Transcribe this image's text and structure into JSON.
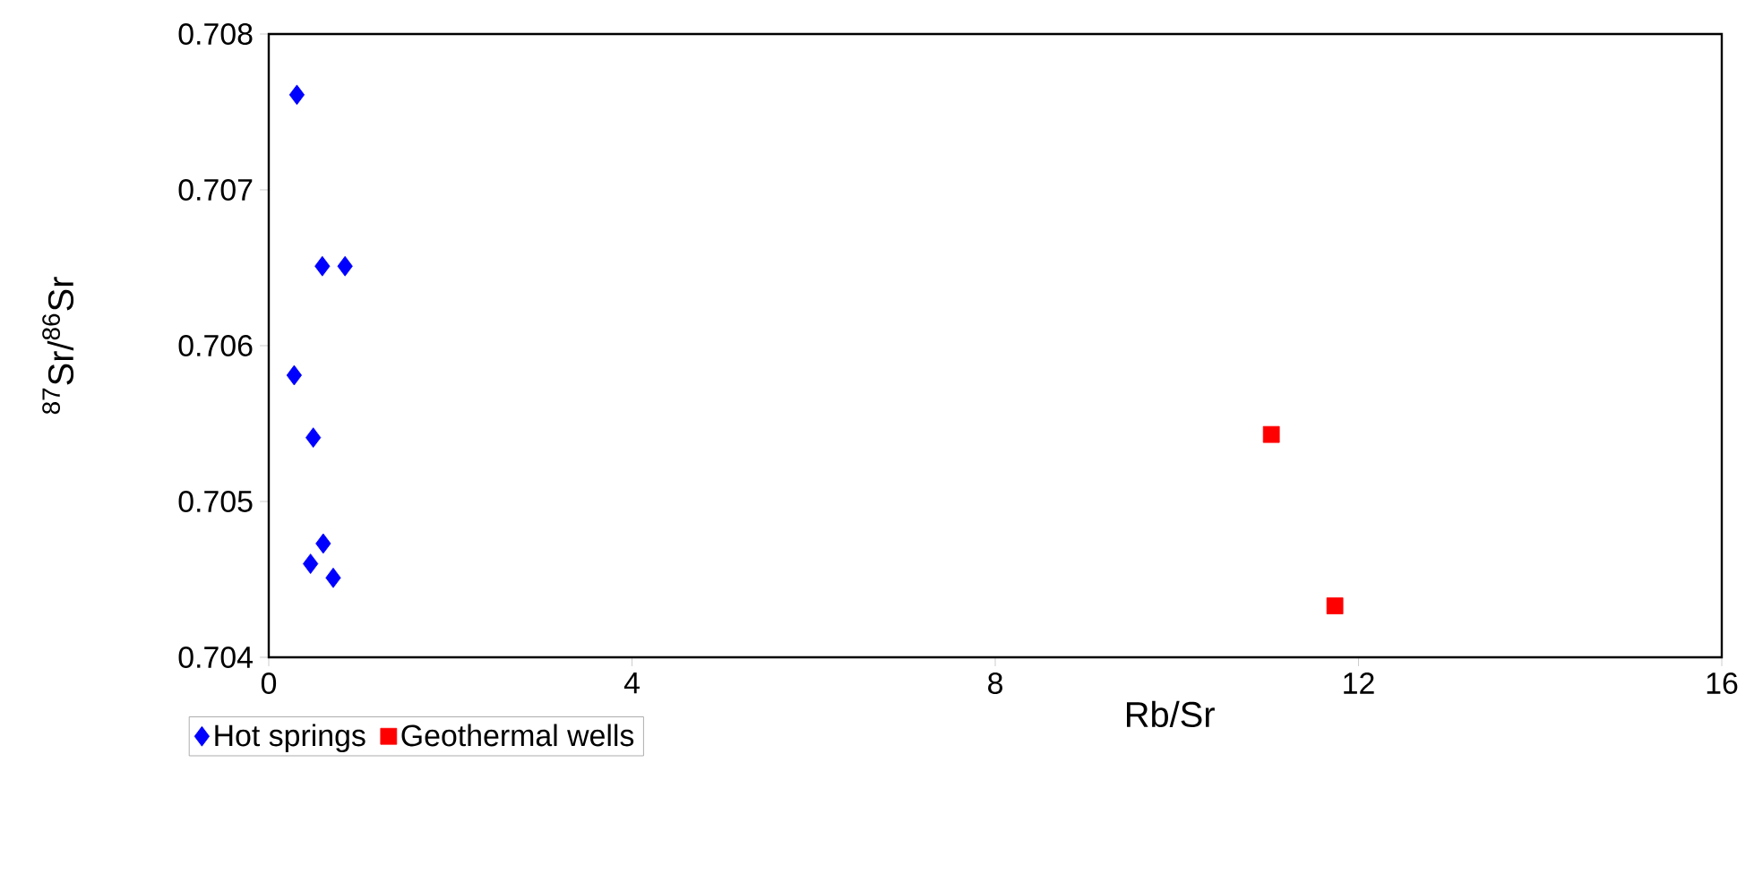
{
  "chart_data": {
    "type": "scatter",
    "xlabel": "Rb/Sr",
    "ylabel": "$^{87}$Sr/$^{86}$Sr",
    "xlim": [
      0,
      16
    ],
    "xticks": [
      0,
      4,
      8,
      12,
      16
    ],
    "ylim": [
      0.704,
      0.708
    ],
    "yticks": [
      0.704,
      0.705,
      0.706,
      0.707,
      0.708
    ],
    "grid": false,
    "legend": "bottom",
    "series": [
      {
        "name": "Hot  springs",
        "color": "#0000ff",
        "marker": "diamond",
        "x": [
          0.31,
          0.59,
          0.84,
          0.28,
          0.49,
          0.6,
          0.46,
          0.71
        ],
        "values": [
          0.70761,
          0.70651,
          0.70651,
          0.70581,
          0.70541,
          0.70473,
          0.7046,
          0.70451
        ]
      },
      {
        "name": "Geothermal wells",
        "color": "#ff0000",
        "marker": "square",
        "x": [
          11.04,
          11.74
        ],
        "values": [
          0.70543,
          0.70433
        ]
      }
    ]
  }
}
